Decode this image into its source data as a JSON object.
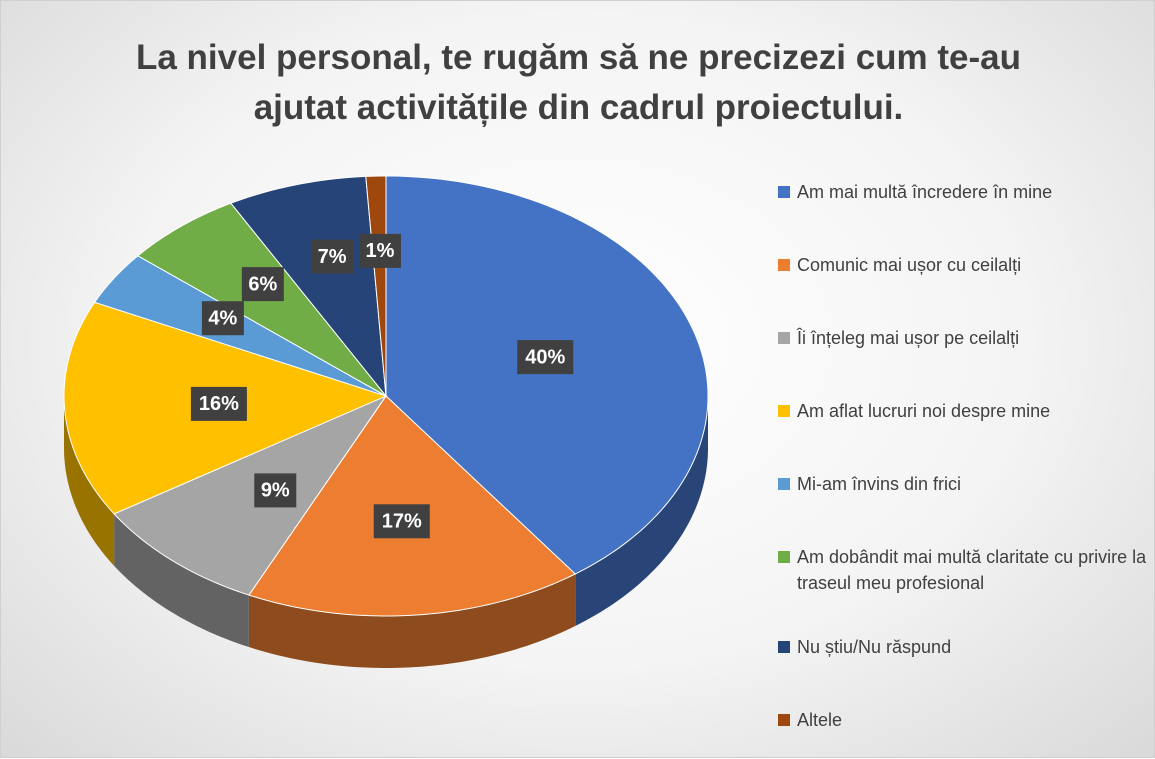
{
  "chart_data": {
    "type": "pie3d",
    "title": "La nivel personal, te rugăm să ne precizezi cum te-au ajutat activitățile din cadrul proiectului.",
    "categories": [
      "Am mai multă încredere în mine",
      "Comunic mai ușor cu ceilalți",
      "Îi înțeleg mai ușor pe ceilalți",
      "Am aflat lucruri noi despre mine",
      "Mi-am învins din frici",
      "Am dobândit mai multă claritate cu privire la traseul meu profesional",
      "Nu știu/Nu răspund",
      "Altele"
    ],
    "values": [
      40,
      17,
      9,
      16,
      4,
      6,
      7,
      1
    ],
    "value_labels": [
      "40%",
      "17%",
      "9%",
      "16%",
      "4%",
      "6%",
      "7%",
      "1%"
    ],
    "colors": [
      "#4472c4",
      "#ed7d31",
      "#a5a5a5",
      "#ffc000",
      "#5b9bd5",
      "#70ad47",
      "#264478",
      "#9e480e"
    ],
    "legend": "right"
  }
}
